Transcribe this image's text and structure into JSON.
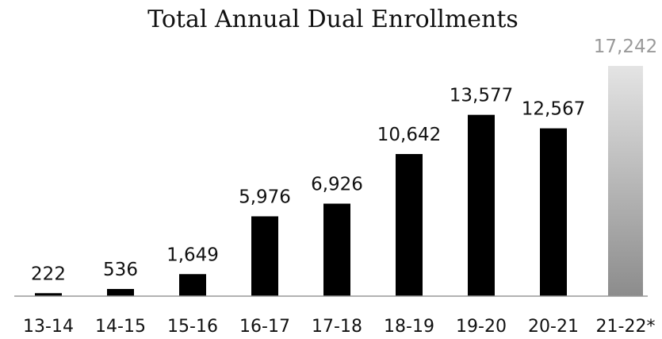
{
  "chart_data": {
    "type": "bar",
    "title": "Total Annual Dual Enrollments",
    "categories": [
      "13-14",
      "14-15",
      "15-16",
      "16-17",
      "17-18",
      "18-19",
      "19-20",
      "20-21",
      "21-22*"
    ],
    "values": [
      222,
      536,
      1649,
      5976,
      6926,
      10642,
      13577,
      12567,
      17242
    ],
    "value_labels": [
      "222",
      "536",
      "1,649",
      "5,976",
      "6,926",
      "10,642",
      "13,577",
      "12,567",
      "17,242"
    ],
    "projected_index": 8,
    "ylim": [
      0,
      17242
    ],
    "grid": false,
    "legend": "none",
    "colors": {
      "bar": "#000000",
      "projected_top": "#e4e4e4",
      "projected_bottom": "#8c8c8c",
      "axis": "#999999"
    }
  }
}
